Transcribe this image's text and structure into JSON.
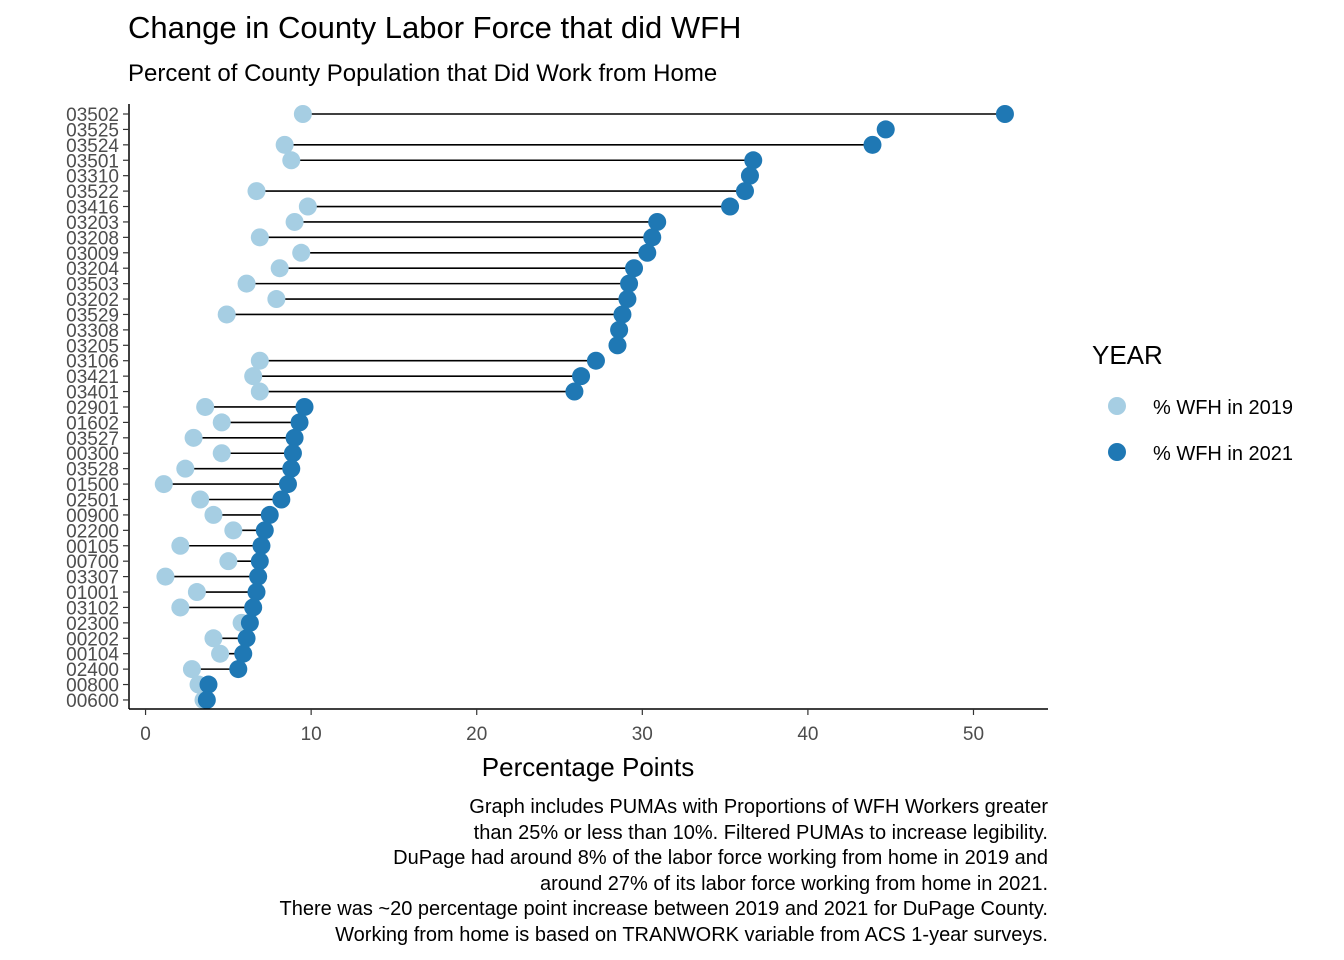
{
  "chart_data": {
    "type": "dumbbell",
    "title": "Change in County Labor Force that did WFH",
    "subtitle": "Percent of County Population that Did Work from Home",
    "xlabel": "Percentage Points",
    "ylabel": "",
    "xlim": [
      -1,
      54.5
    ],
    "xticks": [
      0,
      10,
      20,
      30,
      40,
      50
    ],
    "grid": false,
    "legend": {
      "title": "YEAR",
      "position": "right",
      "entries": [
        {
          "label": "% WFH in 2019",
          "color": "#a6cee3"
        },
        {
          "label": "% WFH in 2021",
          "color": "#1f78b4"
        }
      ]
    },
    "categories": [
      "03502",
      "03525",
      "03524",
      "03501",
      "03310",
      "03522",
      "03416",
      "03203",
      "03208",
      "03009",
      "03204",
      "03503",
      "03202",
      "03529",
      "03308",
      "03205",
      "03106",
      "03421",
      "03401",
      "02901",
      "01602",
      "03527",
      "00300",
      "03528",
      "01500",
      "02501",
      "00900",
      "02200",
      "00105",
      "00700",
      "03307",
      "01001",
      "03102",
      "02300",
      "00202",
      "00104",
      "02400",
      "00800",
      "00600"
    ],
    "series": [
      {
        "name": "% WFH in 2019",
        "color": "#a6cee3",
        "values": [
          9.5,
          44.7,
          8.4,
          8.8,
          36.5,
          6.7,
          9.8,
          9.0,
          6.9,
          9.4,
          8.1,
          6.1,
          7.9,
          4.9,
          28.6,
          28.5,
          6.9,
          6.5,
          6.9,
          3.6,
          4.6,
          2.9,
          4.6,
          2.4,
          1.1,
          3.3,
          4.1,
          5.3,
          2.1,
          5.0,
          1.2,
          3.1,
          2.1,
          5.8,
          4.1,
          4.5,
          2.8,
          3.2,
          3.5
        ]
      },
      {
        "name": "% WFH in 2021",
        "color": "#1f78b4",
        "values": [
          51.9,
          44.7,
          43.9,
          36.7,
          36.5,
          36.2,
          35.3,
          30.9,
          30.6,
          30.3,
          29.5,
          29.2,
          29.1,
          28.8,
          28.6,
          28.5,
          27.2,
          26.3,
          25.9,
          9.6,
          9.3,
          9.0,
          8.9,
          8.8,
          8.6,
          8.2,
          7.5,
          7.2,
          7.0,
          6.9,
          6.8,
          6.7,
          6.5,
          6.3,
          6.1,
          5.9,
          5.6,
          3.8,
          3.7
        ]
      }
    ]
  },
  "caption_lines": [
    "Graph includes PUMAs with Proportions of WFH Workers greater",
    "than 25% or less than 10%. Filtered PUMAs to increase legibility.",
    "DuPage had around 8% of the labor force working from home in 2019 and",
    "around 27% of its labor force working from home in 2021.",
    "There was ~20 percentage point increase between 2019 and 2021 for DuPage County.",
    "Working from home is based on TRANWORK variable from ACS 1-year surveys."
  ]
}
